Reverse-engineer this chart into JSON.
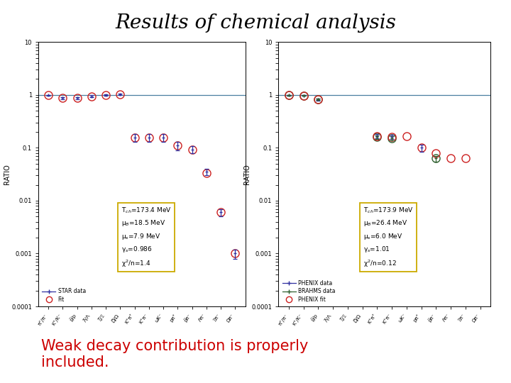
{
  "title": "Results of chemical analysis",
  "title_fontsize": 20,
  "subtitle": "Weak decay contribution is properly\nincluded.",
  "subtitle_color": "#cc0000",
  "subtitle_fontsize": 15,
  "background_color": "#ffffff",
  "panel1": {
    "n_ticks": 14,
    "ylabel": "RATIO",
    "ylim_log": [
      0.0001,
      10
    ],
    "hline_y": 1.0,
    "hline_color": "#4a7fa0",
    "data_x": [
      0,
      1,
      2,
      3,
      4,
      5,
      6,
      7,
      8,
      9,
      10,
      11,
      12,
      13
    ],
    "data_y": [
      0.99,
      0.87,
      0.87,
      0.95,
      1.0,
      1.03,
      0.155,
      0.155,
      0.155,
      0.11,
      0.093,
      0.035,
      0.006,
      0.001
    ],
    "data_yerr": [
      0.02,
      0.05,
      0.05,
      0.04,
      0.03,
      0.03,
      0.025,
      0.025,
      0.025,
      0.02,
      0.015,
      0.005,
      0.001,
      0.0002
    ],
    "fit_x": [
      0,
      1,
      2,
      3,
      4,
      5,
      6,
      7,
      8,
      9,
      10,
      11,
      12,
      13
    ],
    "fit_y": [
      0.99,
      0.87,
      0.87,
      0.95,
      1.0,
      1.03,
      0.155,
      0.155,
      0.155,
      0.11,
      0.093,
      0.033,
      0.006,
      0.001
    ],
    "data_color": "#3030a0",
    "fit_color": "#cc2020",
    "legend_label_data": "STAR data",
    "legend_label_fit": "Fit",
    "box_text": "T$_{ch}$=173.4 MeV\nμ$_B$=18.5 MeV\nμ$_s$=7.9 MeV\nγ$_s$=0.986\nχ$^2$/n=1.4",
    "tick_labels": [
      "π⁺/π⁻",
      "K⁺/K⁻",
      "p̅/p",
      "Λ̅/Λ",
      "Ξ̅/Ξ",
      "Ω̅/Ω",
      "K⁺π⁺",
      "K⁺π⁻",
      "ωK⁻",
      "pπ⁺",
      "p̅π⁻",
      "Λπ⁻",
      "Ξπ⁻",
      "Ωπ⁻"
    ]
  },
  "panel2": {
    "n_ticks": 14,
    "ylabel": "RATIO",
    "ylim_log": [
      0.0001,
      10
    ],
    "hline_y": 1.0,
    "hline_color": "#4a7fa0",
    "phenix_x": [
      0,
      1,
      2,
      6,
      7,
      9
    ],
    "phenix_y": [
      0.99,
      0.98,
      0.82,
      0.165,
      0.16,
      0.1
    ],
    "phenix_yerr": [
      0.015,
      0.015,
      0.03,
      0.015,
      0.015,
      0.015
    ],
    "brahms_x": [
      0,
      1,
      2,
      6,
      7,
      10
    ],
    "brahms_y": [
      0.995,
      0.975,
      0.83,
      0.16,
      0.152,
      0.063
    ],
    "brahms_yerr": [
      0.015,
      0.015,
      0.03,
      0.012,
      0.012,
      0.008
    ],
    "fit_x": [
      0,
      1,
      2,
      6,
      7,
      8,
      9,
      10,
      11,
      12
    ],
    "fit_y": [
      0.995,
      0.975,
      0.82,
      0.165,
      0.16,
      0.165,
      0.1,
      0.078,
      0.063,
      0.063
    ],
    "phenix_color": "#3030a0",
    "brahms_color": "#306030",
    "fit_color": "#cc2020",
    "legend_label_phenix": "PHENIX data",
    "legend_label_brahms": "BRAHMS data",
    "legend_label_fit": "PHENIX fit",
    "box_text": "T$_{ch}$=173.9 MeV\nμ$_B$=26.4 MeV\nμ$_s$=6.0 MeV\nγ$_s$=1.01\nχ$^2$/n=0.12",
    "tick_labels": [
      "π⁺/π⁻",
      "K⁺/K⁻",
      "p̅/p",
      "Λ̅/Λ",
      "Ξ̅/Ξ",
      "Ω̅/Ω",
      "K⁺π⁺",
      "K⁺π⁻",
      "ωK⁻",
      "pπ⁺",
      "p̅π⁻",
      "Λπ⁻",
      "Ξπ⁻",
      "Ωπ⁻"
    ]
  }
}
